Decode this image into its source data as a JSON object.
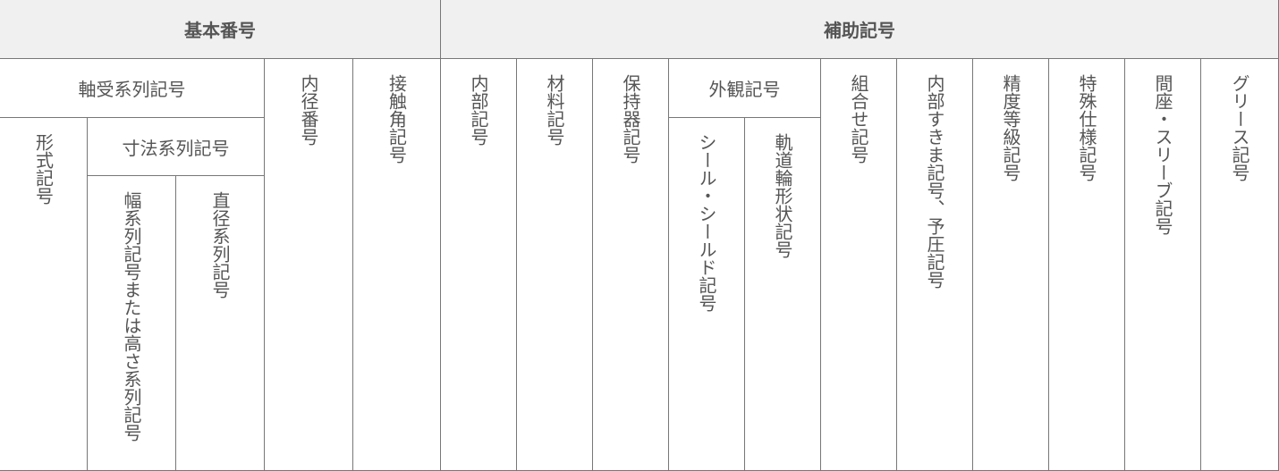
{
  "header": {
    "basic_number": "基本番号",
    "auxiliary_symbols": "補助記号"
  },
  "basic": {
    "bearing_series": "軸受系列記号",
    "type_symbol": "形式記号",
    "dimension_series": "寸法系列記号",
    "width_series": "幅系列記号または高さ系列記号",
    "diameter_series": "直径系列記号",
    "bore_number": "内径番号",
    "contact_angle": "接触角記号"
  },
  "aux": {
    "internal": "内部記号",
    "material": "材料記号",
    "cage": "保持器記号",
    "appearance": "外観記号",
    "seal_shield": "シール・シールド記号",
    "raceway_shape": "軌道輪形状記号",
    "combination": "組合せ記号",
    "clearance_preload": "内部すきま記号、予圧記号",
    "precision": "精度等級記号",
    "special_spec": "特殊仕様記号",
    "spacer_sleeve": "間座・スリーブ記号",
    "grease": "グリース記号"
  }
}
